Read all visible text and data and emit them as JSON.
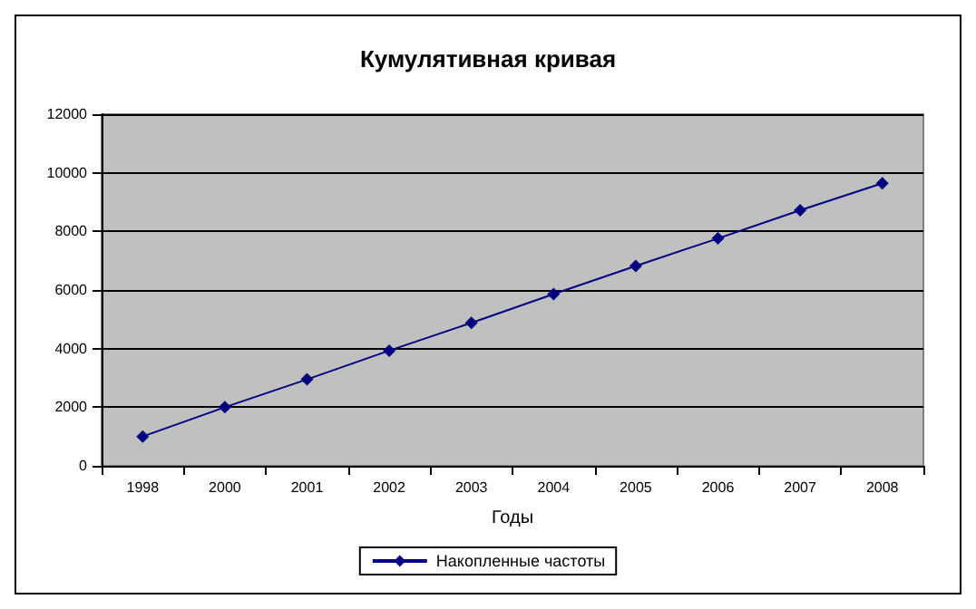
{
  "chart_data": {
    "type": "line",
    "title": "Кумулятивная кривая",
    "xlabel": "Годы",
    "categories": [
      "1998",
      "2000",
      "2001",
      "2002",
      "2003",
      "2004",
      "2005",
      "2006",
      "2007",
      "2008"
    ],
    "series": [
      {
        "name": "Накопленные частоты",
        "color": "#000080",
        "values": [
          1000,
          2000,
          2950,
          3930,
          4880,
          5860,
          6820,
          7760,
          8720,
          9640
        ]
      }
    ],
    "ylim": [
      0,
      12000
    ],
    "yticks": [
      0,
      2000,
      4000,
      6000,
      8000,
      10000,
      12000
    ],
    "grid": "y",
    "legend": "bottom",
    "marker": "diamond",
    "line_style": "solid"
  }
}
